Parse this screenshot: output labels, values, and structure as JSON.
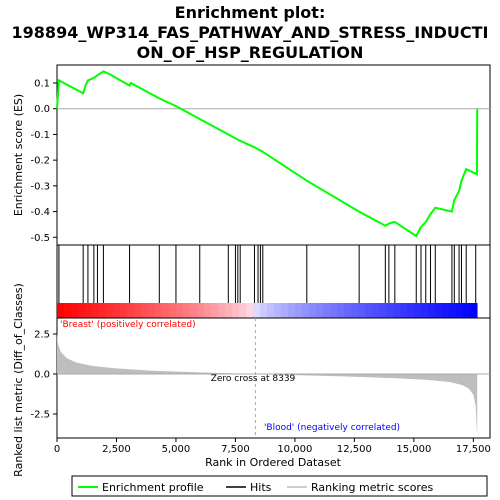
{
  "chart_data": {
    "type": "line",
    "title_line1": "Enrichment plot:",
    "title_line2": "198894_WP314_FAS_PATHWAY_AND_STRESS_INDUCTI",
    "title_line3": "ON_OF_HSP_REGULATION",
    "colors": {
      "es_line": "#00ff00",
      "hits": "#000000",
      "metric_fill": "#bebebe",
      "pos_text": "#ff0000",
      "neg_text": "#0000ff",
      "zero_line": "#aaaaaa"
    },
    "es_panel": {
      "ylabel": "Enrichment score (ES)",
      "ylim": [
        -0.53,
        0.17
      ],
      "yticks": [
        0.1,
        0.0,
        -0.1,
        -0.2,
        -0.3,
        -0.4,
        -0.5
      ],
      "ytick_labels": [
        "0.1",
        "0.0",
        "-0.1",
        "-0.2",
        "-0.3",
        "-0.4",
        "-0.5"
      ],
      "grid": false,
      "points": [
        [
          0,
          0.0
        ],
        [
          80,
          0.11
        ],
        [
          1100,
          0.06
        ],
        [
          1200,
          0.09
        ],
        [
          1300,
          0.11
        ],
        [
          1550,
          0.12
        ],
        [
          1700,
          0.13
        ],
        [
          1950,
          0.145
        ],
        [
          2200,
          0.135
        ],
        [
          3050,
          0.09
        ],
        [
          3100,
          0.1
        ],
        [
          4300,
          0.04
        ],
        [
          5000,
          0.01
        ],
        [
          6000,
          -0.04
        ],
        [
          7200,
          -0.1
        ],
        [
          7600,
          -0.12
        ],
        [
          8300,
          -0.15
        ],
        [
          8600,
          -0.165
        ],
        [
          10500,
          -0.28
        ],
        [
          12700,
          -0.4
        ],
        [
          13800,
          -0.455
        ],
        [
          14000,
          -0.445
        ],
        [
          14200,
          -0.44
        ],
        [
          15100,
          -0.495
        ],
        [
          15300,
          -0.46
        ],
        [
          15500,
          -0.44
        ],
        [
          15700,
          -0.41
        ],
        [
          15900,
          -0.385
        ],
        [
          16600,
          -0.4
        ],
        [
          16700,
          -0.355
        ],
        [
          16900,
          -0.32
        ],
        [
          17000,
          -0.28
        ],
        [
          17200,
          -0.235
        ],
        [
          17650,
          -0.255
        ],
        [
          17660,
          0.0
        ]
      ]
    },
    "hits": [
      80,
      1100,
      1300,
      1550,
      1700,
      1950,
      3050,
      4300,
      5000,
      6000,
      7200,
      7500,
      7600,
      7700,
      8300,
      8450,
      8550,
      8650,
      10500,
      12700,
      13800,
      13950,
      14200,
      15100,
      15300,
      15500,
      15700,
      15900,
      16600,
      16700,
      16900,
      17000,
      17200,
      17600
    ],
    "heatmap_labels": {
      "positive": "'Breast' (positively correlated)",
      "negative": "'Blood' (negatively correlated)"
    },
    "metric_panel": {
      "ylabel": "Ranked list metric (Diff_of_Classes)",
      "ylim": [
        -4.0,
        3.5
      ],
      "yticks": [
        2.5,
        0.0,
        -2.5
      ],
      "ytick_labels": [
        "2.5",
        "0.0",
        "-2.5"
      ],
      "zero_cross_label": "Zero cross at 8339",
      "zero_cross": 8339,
      "curve": [
        [
          0,
          2.6
        ],
        [
          40,
          1.9
        ],
        [
          150,
          1.4
        ],
        [
          400,
          1.0
        ],
        [
          800,
          0.72
        ],
        [
          1500,
          0.5
        ],
        [
          2500,
          0.35
        ],
        [
          4000,
          0.2
        ],
        [
          6000,
          0.1
        ],
        [
          8339,
          0.0
        ],
        [
          10000,
          -0.07
        ],
        [
          12000,
          -0.15
        ],
        [
          14000,
          -0.25
        ],
        [
          15500,
          -0.36
        ],
        [
          16500,
          -0.5
        ],
        [
          17000,
          -0.68
        ],
        [
          17300,
          -0.9
        ],
        [
          17500,
          -1.3
        ],
        [
          17600,
          -2.0
        ],
        [
          17650,
          -3.6
        ],
        [
          17660,
          -3.6
        ]
      ]
    },
    "x_axis": {
      "xlabel": "Rank in Ordered Dataset",
      "xlim": [
        0,
        18200
      ],
      "xticks": [
        0,
        2500,
        5000,
        7500,
        10000,
        12500,
        15000,
        17500
      ],
      "xtick_labels": [
        "0",
        "2,500",
        "5,000",
        "7,500",
        "10,000",
        "12,500",
        "15,000",
        "17,500"
      ],
      "n_genes": 17660
    },
    "legend": {
      "items": [
        "Enrichment profile",
        "Hits",
        "Ranking metric scores"
      ],
      "placement": "bottom"
    }
  }
}
